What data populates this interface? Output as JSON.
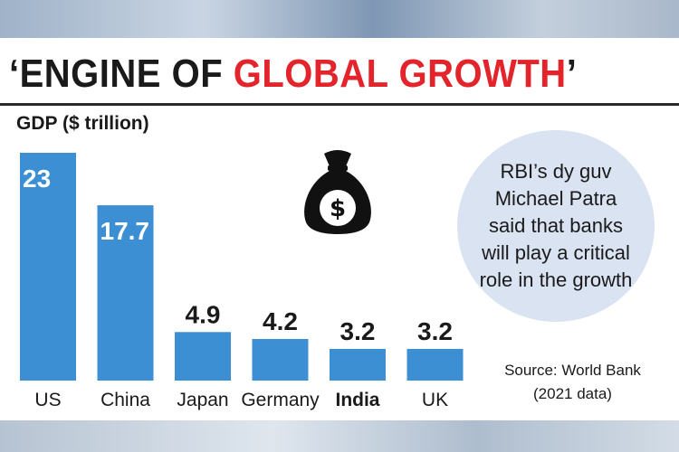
{
  "title": {
    "part1": "‘ENGINE OF ",
    "part2": "GLOBAL GROWTH",
    "part3": "’"
  },
  "chart_data": {
    "type": "bar",
    "ylabel": "GDP ($ trillion)",
    "categories": [
      "US",
      "China",
      "Japan",
      "Germany",
      "India",
      "UK"
    ],
    "values": [
      23,
      17.7,
      4.9,
      4.2,
      3.2,
      3.2
    ],
    "value_labels": [
      "23",
      "17.7",
      "4.9",
      "4.2",
      "3.2",
      "3.2"
    ],
    "highlight_category": "India",
    "ylim": [
      0,
      23
    ],
    "grid": false,
    "bar_color": "#3d8fd3"
  },
  "callout": {
    "text": "RBI’s dy guv Michael Patra said that banks will play a critical role in the growth"
  },
  "source": {
    "line1": "Source: World Bank",
    "line2": "(2021 data)"
  },
  "icons": {
    "money_bag": "money-bag-icon"
  },
  "colors": {
    "title_red": "#e3242b",
    "bubble": "#dae3f1",
    "bar": "#3d8fd3"
  }
}
